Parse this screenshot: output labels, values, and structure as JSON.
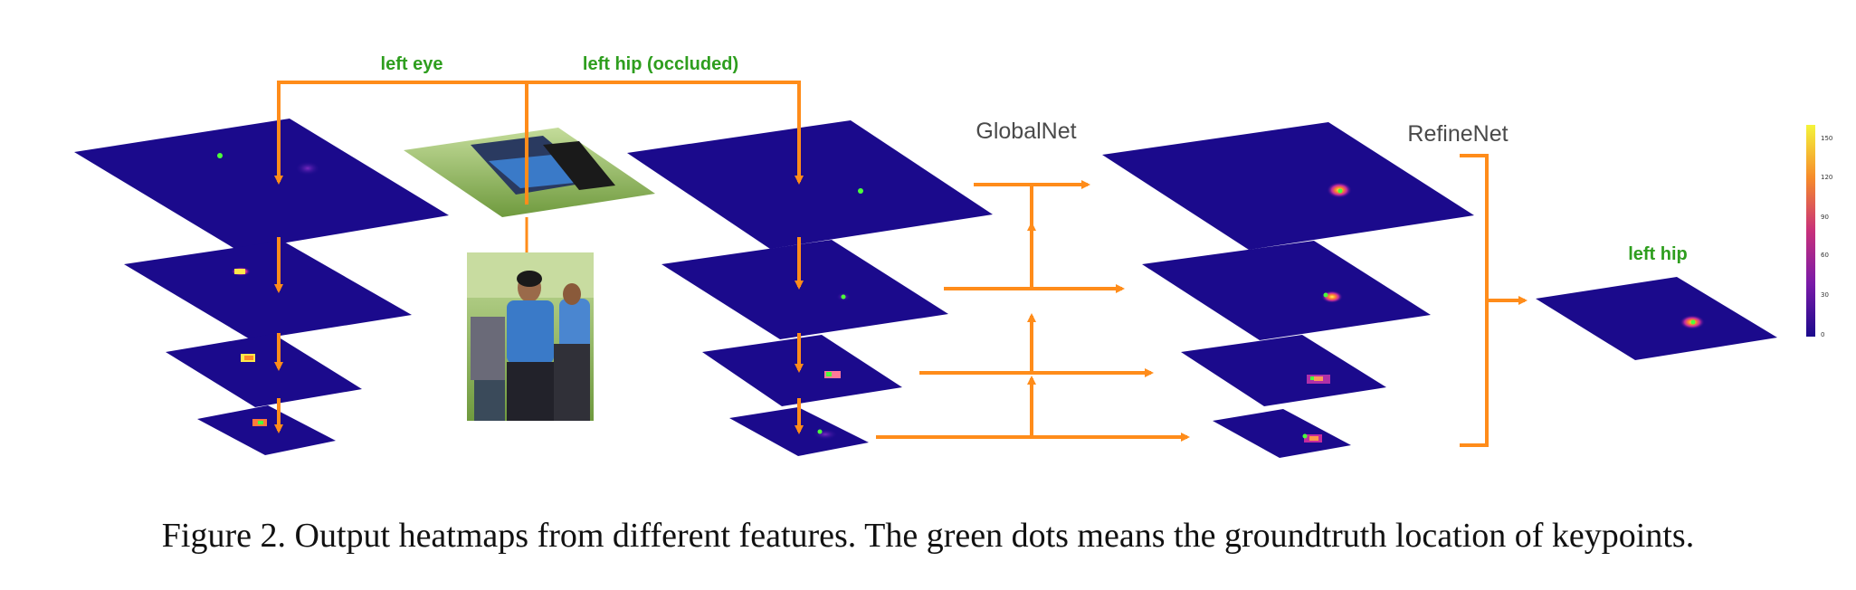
{
  "labels": {
    "left_eye": "left eye",
    "left_hip_occluded": "left hip (occluded)",
    "globalnet": "GlobalNet",
    "refinenet": "RefineNet",
    "left_hip": "left hip"
  },
  "colorbar": {
    "ticks": [
      "150",
      "120",
      "90",
      "60",
      "30",
      "0"
    ]
  },
  "caption": "Figure 2. Output heatmaps from different features. The green dots means the groundtruth location of keypoints.",
  "colors": {
    "heatmap_base": "#1b0a8c",
    "arrow": "#ff8c1a",
    "label_green": "#2e9e1e"
  }
}
